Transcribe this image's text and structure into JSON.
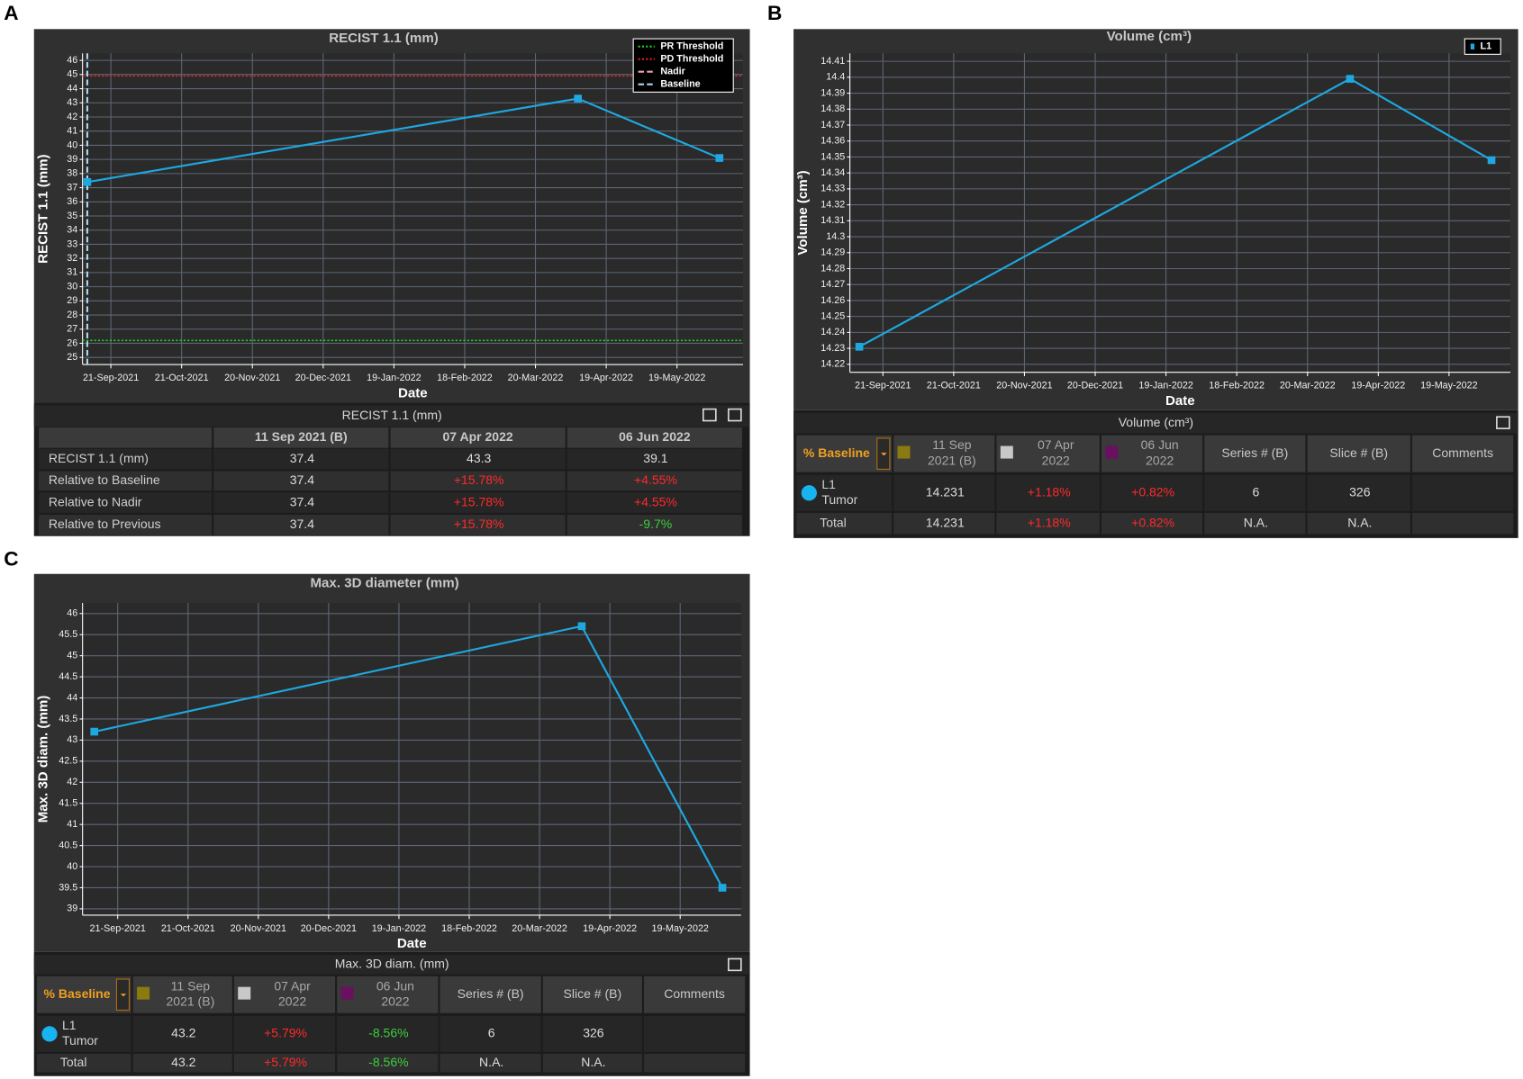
{
  "panel_labels": [
    "A",
    "B",
    "C"
  ],
  "chart_data": [
    {
      "type": "line",
      "title": "RECIST 1.1 (mm)",
      "x_label": "Date",
      "y_label": "RECIST 1.1 (mm)",
      "x": [
        "2021-09-11",
        "2022-04-07",
        "2022-06-06"
      ],
      "series": [
        {
          "color": "#1ea8e0",
          "values": [
            37.4,
            43.3,
            39.1
          ]
        }
      ],
      "xlim": [
        "2021-09-09",
        "2022-06-16"
      ],
      "xticks": [
        {
          "value": "2021-09-21",
          "label": "21-Sep-2021"
        },
        {
          "value": "2021-10-21",
          "label": "21-Oct-2021"
        },
        {
          "value": "2021-11-20",
          "label": "20-Nov-2021"
        },
        {
          "value": "2021-12-20",
          "label": "20-Dec-2021"
        },
        {
          "value": "2022-01-19",
          "label": "19-Jan-2022"
        },
        {
          "value": "2022-02-18",
          "label": "18-Feb-2022"
        },
        {
          "value": "2022-03-20",
          "label": "20-Mar-2022"
        },
        {
          "value": "2022-04-19",
          "label": "19-Apr-2022"
        },
        {
          "value": "2022-05-19",
          "label": "19-May-2022"
        }
      ],
      "ylim": [
        24.5,
        46.5
      ],
      "yticks": [
        25,
        26,
        27,
        28,
        29,
        30,
        31,
        32,
        33,
        34,
        35,
        36,
        37,
        38,
        39,
        40,
        41,
        42,
        43,
        44,
        45,
        46
      ],
      "reference_lines": [
        {
          "name": "PR Threshold",
          "color": "#22d022",
          "style": "dotted",
          "orientation": "horizontal",
          "value": 26.2
        },
        {
          "name": "PD Threshold",
          "color": "#e02020",
          "style": "dotted",
          "orientation": "horizontal",
          "value": 44.9
        },
        {
          "name": "Nadir",
          "color": "#f0a0b8",
          "style": "dashed"
        },
        {
          "name": "Baseline",
          "color": "#a8d8f0",
          "style": "dashed",
          "orientation": "vertical",
          "value": "2021-09-11"
        }
      ],
      "grid": true,
      "legend": "upper right"
    },
    {
      "type": "line",
      "title": "Volume (cm³)",
      "x_label": "Date",
      "y_label": "Volume (cm³)",
      "x": [
        "2021-09-11",
        "2022-04-07",
        "2022-06-06"
      ],
      "series": [
        {
          "name": "L1",
          "color": "#1ea8e0",
          "values": [
            14.231,
            14.399,
            14.348
          ]
        }
      ],
      "xlim": [
        "2021-09-07",
        "2022-06-14"
      ],
      "xticks": [
        {
          "value": "2021-09-21",
          "label": "21-Sep-2021"
        },
        {
          "value": "2021-10-21",
          "label": "21-Oct-2021"
        },
        {
          "value": "2021-11-20",
          "label": "20-Nov-2021"
        },
        {
          "value": "2021-12-20",
          "label": "20-Dec-2021"
        },
        {
          "value": "2022-01-19",
          "label": "19-Jan-2022"
        },
        {
          "value": "2022-02-18",
          "label": "18-Feb-2022"
        },
        {
          "value": "2022-03-20",
          "label": "20-Mar-2022"
        },
        {
          "value": "2022-04-19",
          "label": "19-Apr-2022"
        },
        {
          "value": "2022-05-19",
          "label": "19-May-2022"
        }
      ],
      "ylim": [
        14.215,
        14.415
      ],
      "yticks": [
        14.22,
        14.23,
        14.24,
        14.25,
        14.26,
        14.27,
        14.28,
        14.29,
        14.3,
        14.31,
        14.32,
        14.33,
        14.34,
        14.35,
        14.36,
        14.37,
        14.38,
        14.39,
        14.4,
        14.41
      ],
      "grid": true,
      "legend": "upper right"
    },
    {
      "type": "line",
      "title": "Max. 3D diameter (mm)",
      "x_label": "Date",
      "y_label": "Max. 3D diam. (mm)",
      "x": [
        "2021-09-11",
        "2022-04-07",
        "2022-06-06"
      ],
      "series": [
        {
          "color": "#1ea8e0",
          "values": [
            43.2,
            45.7,
            39.5
          ]
        }
      ],
      "xlim": [
        "2021-09-06",
        "2022-06-14"
      ],
      "xticks": [
        {
          "value": "2021-09-21",
          "label": "21-Sep-2021"
        },
        {
          "value": "2021-10-21",
          "label": "21-Oct-2021"
        },
        {
          "value": "2021-11-20",
          "label": "20-Nov-2021"
        },
        {
          "value": "2021-12-20",
          "label": "20-Dec-2021"
        },
        {
          "value": "2022-01-19",
          "label": "19-Jan-2022"
        },
        {
          "value": "2022-02-18",
          "label": "18-Feb-2022"
        },
        {
          "value": "2022-03-20",
          "label": "20-Mar-2022"
        },
        {
          "value": "2022-04-19",
          "label": "19-Apr-2022"
        },
        {
          "value": "2022-05-19",
          "label": "19-May-2022"
        }
      ],
      "ylim": [
        38.85,
        46.25
      ],
      "yticks": [
        39,
        39.5,
        40,
        40.5,
        41,
        41.5,
        42,
        42.5,
        43,
        43.5,
        44,
        44.5,
        45,
        45.5,
        46
      ],
      "grid": true
    }
  ],
  "tables": [
    {
      "title": "RECIST 1.1 (mm)",
      "columns": [
        "11 Sep 2021 (B)",
        "07 Apr 2022",
        "06 Jun 2022"
      ],
      "rows": [
        {
          "label": [
            "RECIST 1.1 (mm)"
          ],
          "cells": [
            "37.4",
            "43.3",
            "39.1"
          ]
        },
        {
          "label": [
            "Relative to Baseline"
          ],
          "cells": [
            "37.4",
            "+15.78%",
            "+4.55%"
          ]
        },
        {
          "label": [
            "Relative to Nadir"
          ],
          "cells": [
            "37.4",
            "+15.78%",
            "+4.55%"
          ]
        },
        {
          "label": [
            "Relative to Previous"
          ],
          "cells": [
            "37.4",
            "+15.78%",
            "-9.7%"
          ]
        }
      ]
    },
    {
      "title": "Volume (cm³)",
      "baseline_label": "% Baseline",
      "columns": [
        [
          "11 Sep",
          "2021 (B)"
        ],
        [
          "07 Apr",
          "2022"
        ],
        [
          "06 Jun",
          "2022"
        ],
        [
          "Series # (B)"
        ],
        [
          "Slice # (B)"
        ],
        [
          "Comments"
        ]
      ],
      "column_colors": [
        "#8a7a10",
        "#c8c8c8",
        "#6a1060"
      ],
      "rows": [
        {
          "label": [
            "L1",
            "Tumor"
          ],
          "marker_color": "#18b4f0",
          "cells": [
            "14.231",
            "+1.18%",
            "+0.82%",
            "6",
            "326"
          ]
        },
        {
          "label": [
            "Total"
          ],
          "cells": [
            "14.231",
            "+1.18%",
            "+0.82%",
            "N.A.",
            "N.A."
          ]
        }
      ]
    },
    {
      "title": "Max. 3D diam. (mm)",
      "baseline_label": "% Baseline",
      "columns": [
        [
          "11 Sep",
          "2021 (B)"
        ],
        [
          "07 Apr",
          "2022"
        ],
        [
          "06 Jun",
          "2022"
        ],
        [
          "Series # (B)"
        ],
        [
          "Slice # (B)"
        ],
        [
          "Comments"
        ]
      ],
      "column_colors": [
        "#8a7a10",
        "#c8c8c8",
        "#6a1060"
      ],
      "rows": [
        {
          "label": [
            "L1",
            "Tumor"
          ],
          "marker_color": "#18b4f0",
          "cells": [
            "43.2",
            "+5.79%",
            "-8.56%",
            "6",
            "326"
          ]
        },
        {
          "label": [
            "Total"
          ],
          "cells": [
            "43.2",
            "+5.79%",
            "-8.56%",
            "N.A.",
            "N.A."
          ]
        }
      ]
    }
  ]
}
